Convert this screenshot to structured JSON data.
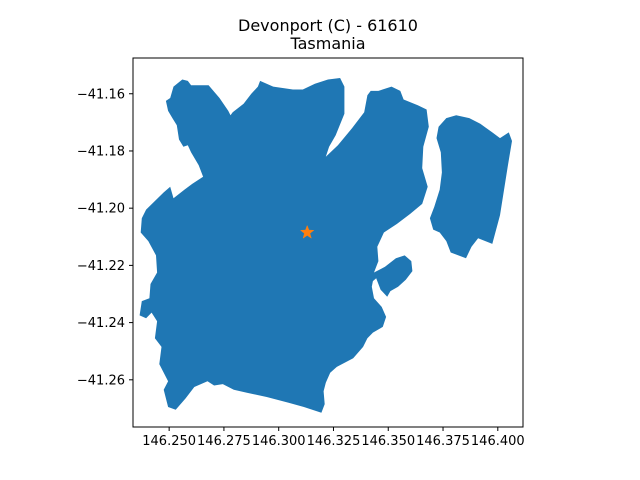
{
  "chart_data": {
    "type": "map",
    "title": "Devonport (C) - 61610",
    "subtitle": "Tasmania",
    "xlabel": "",
    "ylabel": "",
    "xlim": [
      146.2335,
      146.4115
    ],
    "ylim": [
      -41.2765,
      -41.1475
    ],
    "x_ticks": [
      146.25,
      146.275,
      146.3,
      146.325,
      146.35,
      146.375,
      146.4
    ],
    "x_tick_labels": [
      "146.250",
      "146.275",
      "146.300",
      "146.325",
      "146.350",
      "146.375",
      "146.400"
    ],
    "y_ticks": [
      -41.16,
      -41.18,
      -41.2,
      -41.22,
      -41.24,
      -41.26
    ],
    "y_tick_labels": [
      "−41.16",
      "−41.18",
      "−41.20",
      "−41.22",
      "−41.24",
      "−41.26"
    ],
    "grid": false,
    "fill_color": "#1f77b4",
    "marker_color": "#ff7f0e",
    "marker": {
      "lon": 146.313,
      "lat": -41.2085,
      "symbol": "star"
    },
    "regions": [
      {
        "name": "main",
        "coords": [
          [
            146.252,
            -41.1575
          ],
          [
            146.256,
            -41.155
          ],
          [
            146.2585,
            -41.1555
          ],
          [
            146.26,
            -41.157
          ],
          [
            146.268,
            -41.157
          ],
          [
            146.273,
            -41.1615
          ],
          [
            146.277,
            -41.166
          ],
          [
            146.278,
            -41.1675
          ],
          [
            146.279,
            -41.1665
          ],
          [
            146.284,
            -41.1635
          ],
          [
            146.2875,
            -41.16
          ],
          [
            146.2905,
            -41.1575
          ],
          [
            146.2915,
            -41.1555
          ],
          [
            146.2975,
            -41.1575
          ],
          [
            146.3065,
            -41.1585
          ],
          [
            146.311,
            -41.1585
          ],
          [
            146.3165,
            -41.1565
          ],
          [
            146.3225,
            -41.155
          ],
          [
            146.328,
            -41.1545
          ],
          [
            146.33,
            -41.1575
          ],
          [
            146.33,
            -41.167
          ],
          [
            146.326,
            -41.1745
          ],
          [
            146.323,
            -41.1785
          ],
          [
            146.3215,
            -41.182
          ],
          [
            146.327,
            -41.178
          ],
          [
            146.3335,
            -41.172
          ],
          [
            146.339,
            -41.1665
          ],
          [
            146.3405,
            -41.1605
          ],
          [
            146.342,
            -41.159
          ],
          [
            146.3455,
            -41.159
          ],
          [
            146.3515,
            -41.1575
          ],
          [
            146.3555,
            -41.159
          ],
          [
            146.357,
            -41.162
          ],
          [
            146.3635,
            -41.164
          ],
          [
            146.3675,
            -41.1655
          ],
          [
            146.3685,
            -41.1715
          ],
          [
            146.366,
            -41.1785
          ],
          [
            146.3655,
            -41.186
          ],
          [
            146.368,
            -41.1925
          ],
          [
            146.3655,
            -41.1985
          ],
          [
            146.36,
            -41.202
          ],
          [
            146.354,
            -41.2055
          ],
          [
            146.348,
            -41.2085
          ],
          [
            146.345,
            -41.2135
          ],
          [
            146.3455,
            -41.2185
          ],
          [
            146.3435,
            -41.2225
          ],
          [
            146.3485,
            -41.2205
          ],
          [
            146.3535,
            -41.2175
          ],
          [
            146.3575,
            -41.2165
          ],
          [
            146.3605,
            -41.2185
          ],
          [
            146.361,
            -41.222
          ],
          [
            146.358,
            -41.225
          ],
          [
            146.3545,
            -41.2275
          ],
          [
            146.351,
            -41.229
          ],
          [
            146.3495,
            -41.231
          ],
          [
            146.3465,
            -41.2285
          ],
          [
            146.3445,
            -41.2245
          ],
          [
            146.343,
            -41.2255
          ],
          [
            146.3425,
            -41.2275
          ],
          [
            146.3435,
            -41.2315
          ],
          [
            146.347,
            -41.2345
          ],
          [
            146.349,
            -41.238
          ],
          [
            146.3475,
            -41.2415
          ],
          [
            146.343,
            -41.2435
          ],
          [
            146.3405,
            -41.2455
          ],
          [
            146.3385,
            -41.2485
          ],
          [
            146.334,
            -41.2525
          ],
          [
            146.3265,
            -41.2555
          ],
          [
            146.3235,
            -41.2575
          ],
          [
            146.3215,
            -41.261
          ],
          [
            146.3205,
            -41.264
          ],
          [
            146.321,
            -41.2685
          ],
          [
            146.3195,
            -41.2715
          ],
          [
            146.3115,
            -41.2695
          ],
          [
            146.3045,
            -41.268
          ],
          [
            146.2945,
            -41.266
          ],
          [
            146.2855,
            -41.2645
          ],
          [
            146.2795,
            -41.2635
          ],
          [
            146.2745,
            -41.2615
          ],
          [
            146.2705,
            -41.262
          ],
          [
            146.2675,
            -41.2605
          ],
          [
            146.2615,
            -41.2625
          ],
          [
            146.2575,
            -41.2665
          ],
          [
            146.253,
            -41.2705
          ],
          [
            146.2495,
            -41.2695
          ],
          [
            146.2475,
            -41.2635
          ],
          [
            146.2495,
            -41.2605
          ],
          [
            146.2455,
            -41.2545
          ],
          [
            146.2465,
            -41.2485
          ],
          [
            146.2435,
            -41.2455
          ],
          [
            146.2445,
            -41.2395
          ],
          [
            146.242,
            -41.2365
          ],
          [
            146.2395,
            -41.2385
          ],
          [
            146.2365,
            -41.2375
          ],
          [
            146.2375,
            -41.2325
          ],
          [
            146.241,
            -41.2315
          ],
          [
            146.2415,
            -41.2265
          ],
          [
            146.2445,
            -41.2225
          ],
          [
            146.244,
            -41.2165
          ],
          [
            146.2405,
            -41.2115
          ],
          [
            146.237,
            -41.2085
          ],
          [
            146.2375,
            -41.2035
          ],
          [
            146.2395,
            -41.2005
          ],
          [
            146.2435,
            -41.1975
          ],
          [
            146.2475,
            -41.1945
          ],
          [
            146.2505,
            -41.1925
          ],
          [
            146.252,
            -41.1965
          ],
          [
            146.257,
            -41.1935
          ],
          [
            146.2605,
            -41.1915
          ],
          [
            146.2655,
            -41.189
          ],
          [
            146.2635,
            -41.185
          ],
          [
            146.26,
            -41.1805
          ],
          [
            146.2585,
            -41.178
          ],
          [
            146.2565,
            -41.1785
          ],
          [
            146.2545,
            -41.176
          ],
          [
            146.2535,
            -41.171
          ],
          [
            146.2515,
            -41.1685
          ],
          [
            146.2495,
            -41.166
          ],
          [
            146.2485,
            -41.1625
          ],
          [
            146.2505,
            -41.1615
          ]
        ]
      },
      {
        "name": "east",
        "coords": [
          [
            146.373,
            -41.1715
          ],
          [
            146.3765,
            -41.1685
          ],
          [
            146.381,
            -41.1675
          ],
          [
            146.387,
            -41.1685
          ],
          [
            146.392,
            -41.1705
          ],
          [
            146.3975,
            -41.1735
          ],
          [
            146.401,
            -41.1755
          ],
          [
            146.405,
            -41.1735
          ],
          [
            146.4065,
            -41.1765
          ],
          [
            146.4045,
            -41.1855
          ],
          [
            146.401,
            -41.2025
          ],
          [
            146.3975,
            -41.2125
          ],
          [
            146.391,
            -41.2105
          ],
          [
            146.388,
            -41.2135
          ],
          [
            146.3855,
            -41.2175
          ],
          [
            146.3785,
            -41.2155
          ],
          [
            146.3765,
            -41.2115
          ],
          [
            146.3735,
            -41.2085
          ],
          [
            146.3705,
            -41.2075
          ],
          [
            146.369,
            -41.2035
          ],
          [
            146.371,
            -41.1995
          ],
          [
            146.3735,
            -41.1935
          ],
          [
            146.3745,
            -41.1875
          ],
          [
            146.374,
            -41.1805
          ],
          [
            146.372,
            -41.1755
          ]
        ]
      }
    ]
  }
}
